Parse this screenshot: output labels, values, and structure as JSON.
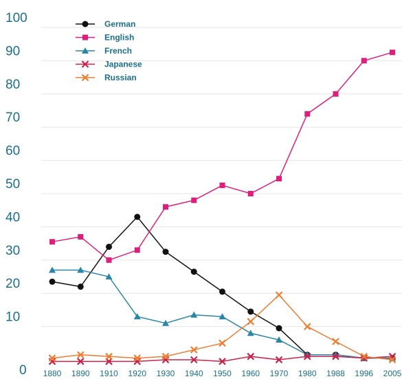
{
  "chart_data": {
    "type": "line",
    "title": "",
    "xlabel": "",
    "ylabel": "",
    "ylim": [
      0,
      100
    ],
    "grid": true,
    "legend_position": "top-left",
    "y_ticks": [
      "0",
      "10",
      "20",
      "30",
      "40",
      "50",
      "60",
      "70",
      "80",
      "90",
      "100"
    ],
    "categories": [
      "1880",
      "1890",
      "1910",
      "1920",
      "1930",
      "1940",
      "1950",
      "1960",
      "1970",
      "1980",
      "1988",
      "1996",
      "2005"
    ],
    "series": [
      {
        "name": "German",
        "color": "#111111",
        "marker": "circle",
        "values": [
          23.5,
          22,
          34,
          43,
          32.5,
          26.5,
          20.5,
          14.5,
          9.5,
          1.5,
          1.5,
          0.5,
          0.5
        ]
      },
      {
        "name": "English",
        "color": "#dd1f7b",
        "marker": "square",
        "values": [
          35.5,
          37,
          30,
          33,
          46,
          48,
          52.5,
          50,
          54.5,
          74,
          80,
          90,
          92.5
        ]
      },
      {
        "name": "French",
        "color": "#2a86a8",
        "marker": "triangle",
        "values": [
          27,
          27,
          25,
          13,
          11,
          13.5,
          13,
          8,
          6,
          1.5,
          1.5,
          0.5,
          0.5
        ]
      },
      {
        "name": "Japanese",
        "color": "#c8234a",
        "marker": "x",
        "values": [
          -0.5,
          -0.5,
          -0.5,
          -0.5,
          0,
          0,
          -0.5,
          1,
          0,
          1,
          1,
          0.5,
          1
        ]
      },
      {
        "name": "Russian",
        "color": "#ee7d32",
        "marker": "x",
        "values": [
          0.5,
          1.5,
          1,
          0.5,
          1,
          3,
          5,
          11.5,
          19.5,
          10,
          5.5,
          1,
          0
        ]
      }
    ]
  }
}
